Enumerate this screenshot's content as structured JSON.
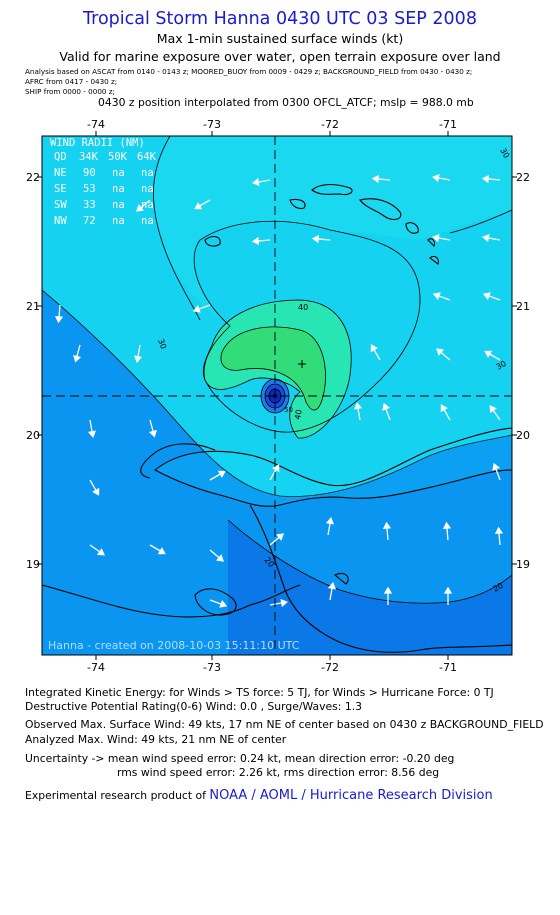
{
  "header": {
    "title": "Tropical Storm Hanna 0430 UTC 03 SEP 2008",
    "subtitle": "Max 1-min sustained surface winds (kt)",
    "valid": "Valid for marine exposure over water, open terrain exposure over land",
    "analysis_line1": "Analysis based on   ASCAT from 0140 - 0143 z;   MOORED_BUOY from 0009 - 0429 z;   BACKGROUND_FIELD from 0430 - 0430 z;",
    "analysis_line2": "AFRC from 0417 - 0430 z;",
    "analysis_line3": "SHIP from 0000 - 0000 z;",
    "position": "0430 z position interpolated from 0300 OFCL_ATCF; mslp = 988.0 mb"
  },
  "map": {
    "lon_ticks": [
      "-74",
      "-73",
      "-72",
      "-71"
    ],
    "lat_ticks": [
      "22",
      "21",
      "20",
      "19"
    ],
    "credit": "Hanna - created on 2008-10-03 15:11:10 UTC",
    "contour_labels": [
      "30",
      "40",
      "40",
      "30",
      "20",
      "20",
      "30",
      "50"
    ],
    "wind_radii": {
      "title": "WIND RADII (NM)",
      "header": [
        "QD",
        "34K",
        "50K",
        "64K"
      ],
      "rows": [
        [
          "NE",
          "90",
          "na",
          "na"
        ],
        [
          "SE",
          "53",
          "na",
          "na"
        ],
        [
          "SW",
          "33",
          "na",
          "na"
        ],
        [
          "NW",
          "72",
          "na",
          "na"
        ]
      ]
    }
  },
  "footer": {
    "ike": "Integrated Kinetic Energy:  for Winds > TS force: 5 TJ,  for Winds > Hurricane Force: 0 TJ",
    "dpr": "Destructive Potential Rating(0-6)   Wind: 0.0 , Surge/Waves: 1.3",
    "obs_max": "Observed Max. Surface Wind: 49 kts, 17 nm NE of center based on 0430 z BACKGROUND_FIELD",
    "analyzed_max": "Analyzed Max. Wind: 49 kts, 21 nm NE of center",
    "uncert1": "Uncertainty -> mean wind speed error: 0.24 kt,   mean direction error:  -0.20 deg",
    "uncert2": "rms wind speed error: 2.26 kt,   rms direction error: 8.56 deg",
    "product_prefix": "Experimental research product of",
    "product_link": "NOAA / AOML / Hurricane Research Division"
  },
  "colors": {
    "title": "#1a1ad0",
    "wind_10_20": "#0a78e6",
    "wind_20_30": "#0a96f0",
    "wind_30_40": "#14d2f0",
    "wind_40_50": "#28e6b4",
    "wind_50_plus": "#32dc78",
    "land_outline": "#000000"
  }
}
